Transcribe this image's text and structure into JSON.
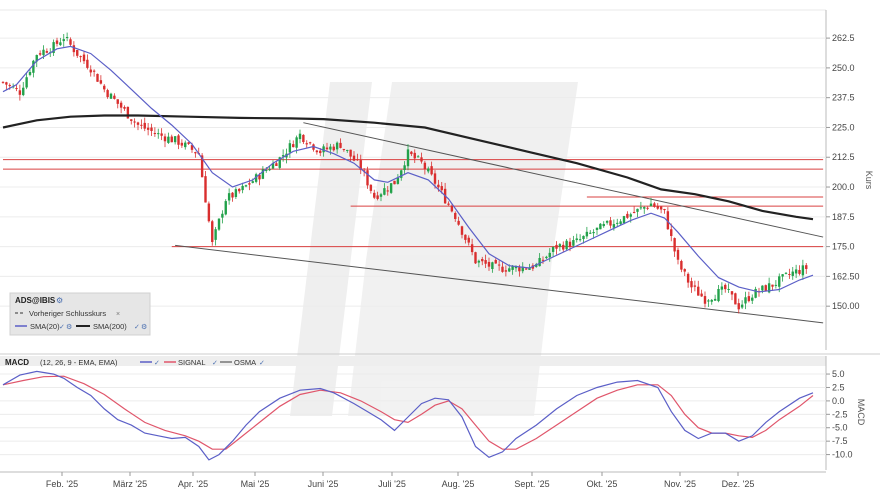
{
  "chart_data": [
    {
      "type": "candlestick",
      "legend": {
        "symbol": "ADS@IBIS",
        "previous_close": "Vorheriger Schlusskurs",
        "sma20": "SMA(20)",
        "sma200": "SMA(200)"
      },
      "ylabel": "Kurs",
      "ylim": [
        140,
        268
      ],
      "yticks": [
        "262.5",
        "250.0",
        "237.5",
        "225.0",
        "212.5",
        "200.0",
        "187.5",
        "175.0",
        "162.50",
        "150.00"
      ],
      "xticks": [
        "Feb. '25",
        "März '25",
        "Apr. '25",
        "Mai '25",
        "Juni '25",
        "Juli '25",
        "Aug. '25",
        "Sept. '25",
        "Okt. '25",
        "Nov. '25",
        "Dez. '25"
      ],
      "close_path": [
        [
          0,
          244
        ],
        [
          5,
          240
        ],
        [
          10,
          256
        ],
        [
          15,
          259
        ],
        [
          18,
          263
        ],
        [
          22,
          256
        ],
        [
          26,
          250
        ],
        [
          30,
          241
        ],
        [
          34,
          235
        ],
        [
          40,
          226
        ],
        [
          46,
          222
        ],
        [
          52,
          219
        ],
        [
          58,
          214
        ],
        [
          62,
          176
        ],
        [
          66,
          195
        ],
        [
          70,
          198
        ],
        [
          76,
          205
        ],
        [
          82,
          212
        ],
        [
          88,
          222
        ],
        [
          94,
          215
        ],
        [
          100,
          218
        ],
        [
          106,
          208
        ],
        [
          110,
          196
        ],
        [
          116,
          202
        ],
        [
          120,
          214
        ],
        [
          124,
          210
        ],
        [
          128,
          202
        ],
        [
          134,
          188
        ],
        [
          140,
          169
        ],
        [
          146,
          166
        ],
        [
          152,
          166
        ],
        [
          158,
          167
        ],
        [
          164,
          175
        ],
        [
          170,
          177
        ],
        [
          176,
          182
        ],
        [
          182,
          186
        ],
        [
          188,
          190
        ],
        [
          192,
          193
        ],
        [
          196,
          189
        ],
        [
          200,
          168
        ],
        [
          204,
          158
        ],
        [
          208,
          153
        ],
        [
          214,
          157
        ],
        [
          218,
          150
        ],
        [
          222,
          155
        ],
        [
          228,
          159
        ],
        [
          234,
          164
        ],
        [
          238,
          166
        ],
        [
          240,
          159
        ]
      ],
      "sma20_path": [
        [
          0,
          240
        ],
        [
          4,
          243
        ],
        [
          10,
          253
        ],
        [
          16,
          258
        ],
        [
          20,
          259
        ],
        [
          26,
          256
        ],
        [
          32,
          249
        ],
        [
          38,
          241
        ],
        [
          44,
          233
        ],
        [
          50,
          226
        ],
        [
          56,
          218
        ],
        [
          62,
          206
        ],
        [
          68,
          200
        ],
        [
          74,
          203
        ],
        [
          80,
          210
        ],
        [
          86,
          215
        ],
        [
          92,
          217
        ],
        [
          98,
          214
        ],
        [
          104,
          210
        ],
        [
          110,
          203
        ],
        [
          114,
          202
        ],
        [
          120,
          206
        ],
        [
          126,
          203
        ],
        [
          132,
          195
        ],
        [
          138,
          183
        ],
        [
          144,
          172
        ],
        [
          150,
          167
        ],
        [
          156,
          166
        ],
        [
          162,
          170
        ],
        [
          168,
          174
        ],
        [
          174,
          178
        ],
        [
          180,
          182
        ],
        [
          186,
          186
        ],
        [
          192,
          189
        ],
        [
          196,
          187
        ],
        [
          200,
          181
        ],
        [
          206,
          171
        ],
        [
          212,
          162
        ],
        [
          218,
          158
        ],
        [
          224,
          156
        ],
        [
          230,
          157
        ],
        [
          236,
          161
        ],
        [
          240,
          163
        ]
      ],
      "sma200_path": [
        [
          0,
          225
        ],
        [
          10,
          228
        ],
        [
          20,
          229.5
        ],
        [
          30,
          230
        ],
        [
          40,
          230
        ],
        [
          55,
          229.5
        ],
        [
          70,
          229
        ],
        [
          85,
          228.8
        ],
        [
          95,
          228.5
        ],
        [
          110,
          227
        ],
        [
          125,
          225
        ],
        [
          140,
          220
        ],
        [
          155,
          215
        ],
        [
          170,
          210
        ],
        [
          185,
          204
        ],
        [
          195,
          199
        ],
        [
          205,
          197
        ],
        [
          215,
          194
        ],
        [
          225,
          190
        ],
        [
          235,
          187.5
        ],
        [
          240,
          186.5
        ]
      ],
      "trendlines": [
        {
          "from": [
            89,
            227
          ],
          "to": [
            243,
            179
          ]
        },
        {
          "from": [
            51,
            175.5
          ],
          "to": [
            243,
            143
          ]
        }
      ],
      "horizontal_levels": [
        {
          "value": 211.5,
          "from": 0,
          "to": 243
        },
        {
          "value": 207.5,
          "from": 0,
          "to": 243
        },
        {
          "value": 195.8,
          "from": 173,
          "to": 243
        },
        {
          "value": 192.0,
          "from": 103,
          "to": 243
        },
        {
          "value": 175.0,
          "from": 50,
          "to": 243
        }
      ]
    },
    {
      "type": "line",
      "legend": {
        "title": "MACD",
        "params": "(12, 26, 9 - EMA, EMA)",
        "signal": "SIGNAL",
        "osma": "OSMA"
      },
      "ylabel": "MACD",
      "ylim": [
        -12.5,
        6.5
      ],
      "yticks": [
        "5.0",
        "2.5",
        "0.0",
        "-2.5",
        "-5.0",
        "-7.5",
        "-10.0"
      ],
      "series": [
        {
          "name": "MACD",
          "color": "#5b5fc7",
          "points": [
            [
              0,
              3.0
            ],
            [
              5,
              4.8
            ],
            [
              10,
              5.5
            ],
            [
              15,
              5.0
            ],
            [
              18,
              4.2
            ],
            [
              22,
              2.5
            ],
            [
              26,
              1.0
            ],
            [
              30,
              -1.5
            ],
            [
              34,
              -3.5
            ],
            [
              38,
              -4.5
            ],
            [
              42,
              -6.0
            ],
            [
              46,
              -6.5
            ],
            [
              50,
              -7.0
            ],
            [
              54,
              -6.8
            ],
            [
              58,
              -8.5
            ],
            [
              61,
              -11.0
            ],
            [
              64,
              -10.0
            ],
            [
              68,
              -7.5
            ],
            [
              72,
              -4.5
            ],
            [
              76,
              -2.0
            ],
            [
              82,
              0.5
            ],
            [
              88,
              2.0
            ],
            [
              94,
              2.3
            ],
            [
              98,
              1.5
            ],
            [
              104,
              -0.5
            ],
            [
              108,
              -2.0
            ],
            [
              112,
              -3.5
            ],
            [
              116,
              -5.5
            ],
            [
              120,
              -3.0
            ],
            [
              124,
              -0.5
            ],
            [
              128,
              0.5
            ],
            [
              132,
              0.2
            ],
            [
              136,
              -3.0
            ],
            [
              140,
              -8.5
            ],
            [
              144,
              -10.5
            ],
            [
              148,
              -9.5
            ],
            [
              152,
              -7.0
            ],
            [
              158,
              -4.5
            ],
            [
              164,
              -1.5
            ],
            [
              170,
              1.0
            ],
            [
              176,
              2.5
            ],
            [
              182,
              3.5
            ],
            [
              188,
              3.8
            ],
            [
              194,
              2.5
            ],
            [
              198,
              -2.0
            ],
            [
              202,
              -5.5
            ],
            [
              206,
              -7.0
            ],
            [
              210,
              -6.0
            ],
            [
              214,
              -6.0
            ],
            [
              218,
              -7.5
            ],
            [
              222,
              -6.5
            ],
            [
              226,
              -4.0
            ],
            [
              230,
              -2.0
            ],
            [
              236,
              0.5
            ],
            [
              240,
              1.5
            ]
          ]
        },
        {
          "name": "SIGNAL",
          "color": "#e0566b",
          "points": [
            [
              0,
              3.0
            ],
            [
              6,
              3.8
            ],
            [
              12,
              4.5
            ],
            [
              18,
              4.6
            ],
            [
              24,
              3.2
            ],
            [
              30,
              1.2
            ],
            [
              36,
              -1.5
            ],
            [
              42,
              -4.0
            ],
            [
              48,
              -5.5
            ],
            [
              54,
              -6.5
            ],
            [
              58,
              -7.5
            ],
            [
              62,
              -9.0
            ],
            [
              66,
              -9.0
            ],
            [
              70,
              -7.0
            ],
            [
              76,
              -4.0
            ],
            [
              82,
              -1.0
            ],
            [
              88,
              1.2
            ],
            [
              94,
              2.0
            ],
            [
              100,
              1.5
            ],
            [
              106,
              0.0
            ],
            [
              112,
              -2.0
            ],
            [
              116,
              -3.5
            ],
            [
              120,
              -4.0
            ],
            [
              124,
              -2.5
            ],
            [
              128,
              -0.8
            ],
            [
              132,
              0.0
            ],
            [
              136,
              -1.5
            ],
            [
              140,
              -4.5
            ],
            [
              144,
              -7.5
            ],
            [
              148,
              -9.0
            ],
            [
              152,
              -9.0
            ],
            [
              158,
              -7.0
            ],
            [
              164,
              -4.5
            ],
            [
              170,
              -2.0
            ],
            [
              176,
              0.5
            ],
            [
              182,
              2.0
            ],
            [
              188,
              3.0
            ],
            [
              194,
              3.0
            ],
            [
              198,
              1.0
            ],
            [
              202,
              -2.5
            ],
            [
              206,
              -5.0
            ],
            [
              210,
              -6.0
            ],
            [
              214,
              -6.0
            ],
            [
              218,
              -6.5
            ],
            [
              222,
              -6.8
            ],
            [
              226,
              -5.5
            ],
            [
              230,
              -3.5
            ],
            [
              236,
              -1.0
            ],
            [
              240,
              1.0
            ]
          ]
        }
      ]
    }
  ]
}
